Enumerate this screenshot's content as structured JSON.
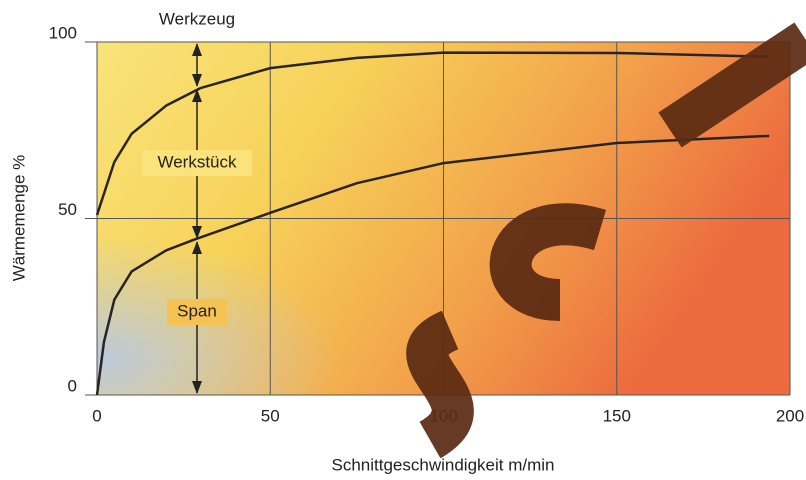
{
  "chart_data": {
    "type": "line",
    "x_label": "Schnittgeschwindigkeit m/min",
    "y_label": "Wärmemenge %",
    "annotations": [
      "Werkzeug",
      "Werkstück",
      "Span"
    ],
    "series": [
      {
        "color": "#2a2420",
        "x": [
          0,
          5,
          10,
          20,
          30,
          50,
          75,
          100,
          150,
          194
        ],
        "values": [
          51,
          66,
          74,
          82,
          87,
          92.6,
          95.5,
          97,
          96.9,
          95.8
        ]
      },
      {
        "color": "#2a2420",
        "x": [
          0,
          2,
          5,
          10,
          20,
          28,
          50,
          75,
          100,
          150,
          194
        ],
        "values": [
          0,
          15,
          27,
          35,
          41,
          44,
          51.6,
          60,
          65.7,
          71.4,
          73.4
        ]
      }
    ],
    "xlim": [
      0,
      200
    ],
    "xticks": [
      0,
      50,
      100,
      150,
      200
    ],
    "ylim": [
      0,
      100
    ],
    "yticks": [
      0,
      50,
      100
    ],
    "grid": true
  }
}
